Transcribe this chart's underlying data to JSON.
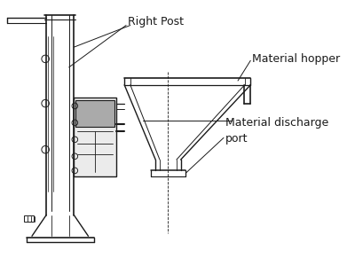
{
  "background": "#ffffff",
  "line_color": "#1a1a1a",
  "labels": {
    "right_post": "Right Post",
    "material_hopper": "Material hopper",
    "material_discharge": "Material discharge\nport"
  },
  "figsize": [
    4.0,
    2.91
  ],
  "dpi": 100
}
